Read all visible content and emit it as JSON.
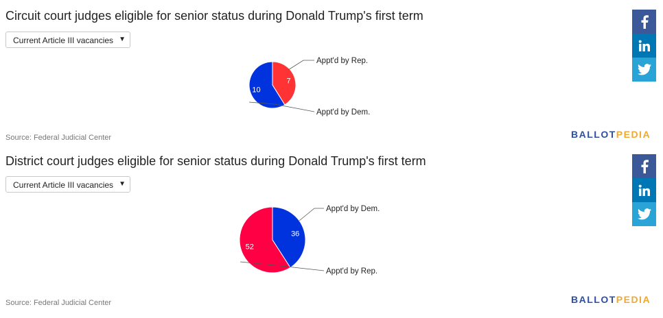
{
  "panels": [
    {
      "title": "Circuit court judges eligible for senior status during Donald Trump's first term",
      "dropdown": {
        "selected": "Current Article III vacancies",
        "caret": "▼"
      },
      "source": "Source: Federal Judicial Center",
      "logo": {
        "part1": "BALLOT",
        "part2": "PEDIA"
      },
      "share": [
        "facebook-icon",
        "linkedin-icon",
        "twitter-icon"
      ]
    },
    {
      "title": "District court judges eligible for senior status during Donald Trump's first term",
      "dropdown": {
        "selected": "Current Article III vacancies",
        "caret": "▼"
      },
      "source": "Source: Federal Judicial Center",
      "logo": {
        "part1": "BALLOT",
        "part2": "PEDIA"
      },
      "share": [
        "facebook-icon",
        "linkedin-icon",
        "twitter-icon"
      ]
    }
  ],
  "chart_data": [
    {
      "type": "pie",
      "title": "Circuit court judges eligible for senior status during Donald Trump's first term",
      "slices": [
        {
          "label": "Appt'd by Rep.",
          "value": 7,
          "color": "#ff3333"
        },
        {
          "label": "Appt'd by Dem.",
          "value": 10,
          "color": "#0033dd"
        }
      ]
    },
    {
      "type": "pie",
      "title": "District court judges eligible for senior status during Donald Trump's first term",
      "slices": [
        {
          "label": "Appt'd by Dem.",
          "value": 36,
          "color": "#0033dd"
        },
        {
          "label": "Appt'd by Rep.",
          "value": 52,
          "color": "#ff0044"
        }
      ]
    }
  ]
}
